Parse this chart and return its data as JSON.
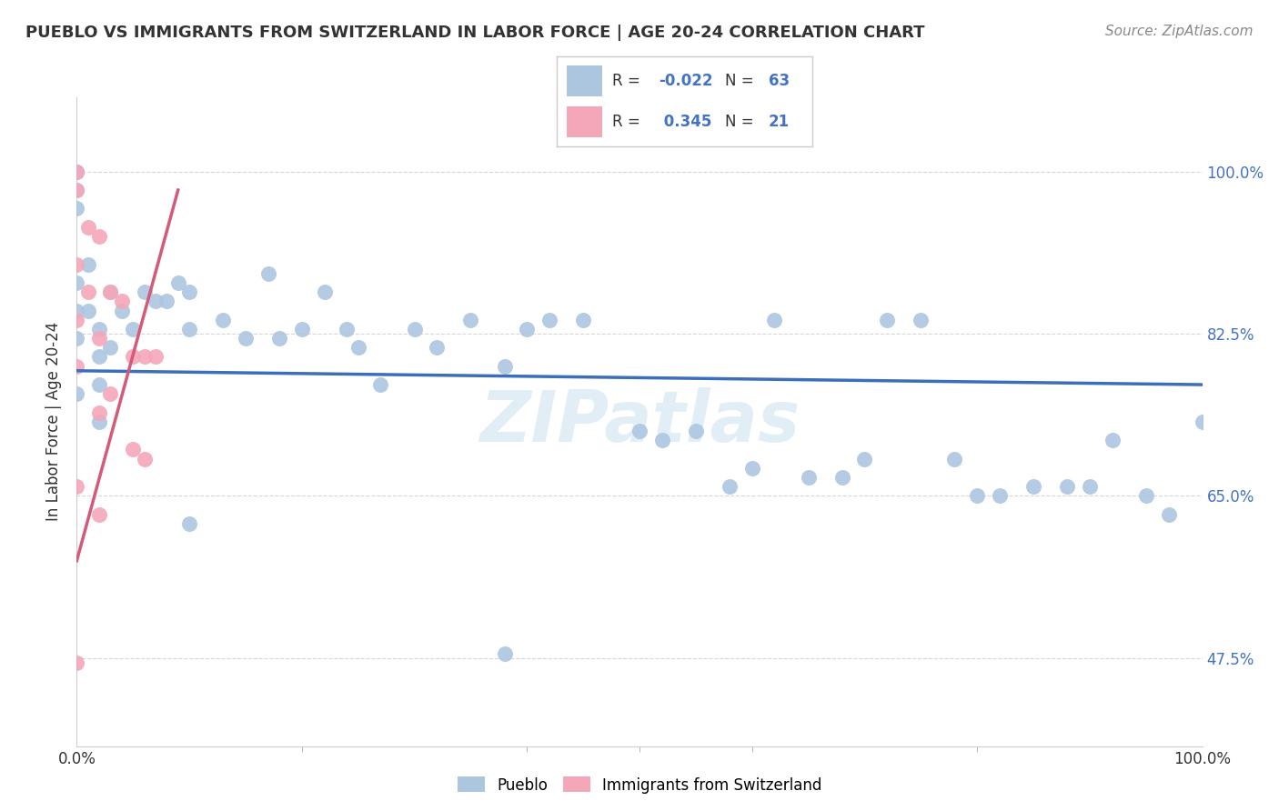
{
  "title": "PUEBLO VS IMMIGRANTS FROM SWITZERLAND IN LABOR FORCE | AGE 20-24 CORRELATION CHART",
  "source": "Source: ZipAtlas.com",
  "ylabel": "In Labor Force | Age 20-24",
  "xlim": [
    0.0,
    1.0
  ],
  "ylim": [
    0.38,
    1.08
  ],
  "yticks": [
    0.475,
    0.65,
    0.825,
    1.0
  ],
  "ytick_labels": [
    "47.5%",
    "65.0%",
    "82.5%",
    "100.0%"
  ],
  "xticks": [
    0.0,
    1.0
  ],
  "xtick_labels": [
    "0.0%",
    "100.0%"
  ],
  "pueblo_color": "#adc6e0",
  "swiss_color": "#f4a7b9",
  "pueblo_line_color": "#3b6fba",
  "swiss_line_color": "#d45a78",
  "watermark": "ZIPatlas",
  "pueblo_scatter_x": [
    0.0,
    0.0,
    0.0,
    0.0,
    0.0,
    0.0,
    0.0,
    0.0,
    0.01,
    0.01,
    0.02,
    0.02,
    0.02,
    0.02,
    0.03,
    0.03,
    0.04,
    0.05,
    0.06,
    0.07,
    0.08,
    0.09,
    0.1,
    0.1,
    0.13,
    0.15,
    0.17,
    0.18,
    0.2,
    0.22,
    0.24,
    0.25,
    0.27,
    0.3,
    0.32,
    0.35,
    0.38,
    0.4,
    0.42,
    0.45,
    0.5,
    0.52,
    0.55,
    0.58,
    0.6,
    0.62,
    0.65,
    0.68,
    0.7,
    0.72,
    0.75,
    0.78,
    0.8,
    0.82,
    0.85,
    0.88,
    0.9,
    0.92,
    0.95,
    0.97,
    1.0,
    0.1,
    0.38
  ],
  "pueblo_scatter_y": [
    1.0,
    1.0,
    0.98,
    0.96,
    0.88,
    0.85,
    0.82,
    0.76,
    0.9,
    0.85,
    0.83,
    0.8,
    0.77,
    0.73,
    0.87,
    0.81,
    0.85,
    0.83,
    0.87,
    0.86,
    0.86,
    0.88,
    0.87,
    0.83,
    0.84,
    0.82,
    0.89,
    0.82,
    0.83,
    0.87,
    0.83,
    0.81,
    0.77,
    0.83,
    0.81,
    0.84,
    0.79,
    0.83,
    0.84,
    0.84,
    0.72,
    0.71,
    0.72,
    0.66,
    0.68,
    0.84,
    0.67,
    0.67,
    0.69,
    0.84,
    0.84,
    0.69,
    0.65,
    0.65,
    0.66,
    0.66,
    0.66,
    0.71,
    0.65,
    0.63,
    0.73,
    0.62,
    0.48
  ],
  "swiss_scatter_x": [
    0.0,
    0.0,
    0.0,
    0.0,
    0.0,
    0.0,
    0.0,
    0.01,
    0.01,
    0.02,
    0.02,
    0.02,
    0.03,
    0.03,
    0.04,
    0.05,
    0.05,
    0.06,
    0.06,
    0.07,
    0.02
  ],
  "swiss_scatter_y": [
    1.0,
    0.98,
    0.9,
    0.84,
    0.79,
    0.66,
    0.47,
    0.94,
    0.87,
    0.93,
    0.82,
    0.74,
    0.87,
    0.76,
    0.86,
    0.8,
    0.7,
    0.8,
    0.69,
    0.8,
    0.63
  ],
  "pueblo_trend_x": [
    0.0,
    1.0
  ],
  "pueblo_trend_y": [
    0.785,
    0.77
  ],
  "swiss_trend_x": [
    0.0,
    0.09
  ],
  "swiss_trend_y": [
    0.58,
    0.98
  ]
}
